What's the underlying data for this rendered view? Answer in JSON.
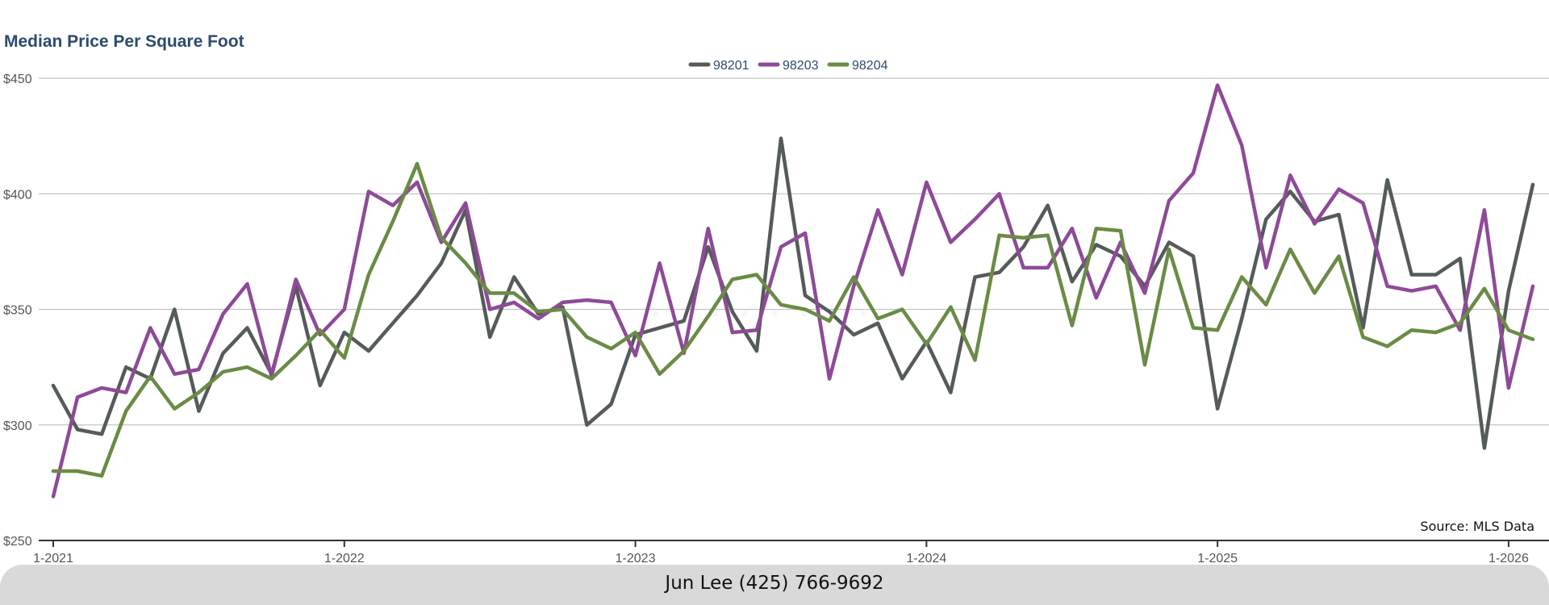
{
  "chart_data": {
    "type": "line",
    "title": "Median Price Per Square Foot",
    "xlabel": "",
    "ylabel": "",
    "ylim": [
      250,
      450
    ],
    "yticks": [
      250,
      300,
      350,
      400,
      450
    ],
    "ytick_labels": [
      "$250",
      "$300",
      "$350",
      "$400",
      "$450"
    ],
    "xlim": [
      "2021-01",
      "2026-02"
    ],
    "xticks": [
      "2021-01",
      "2022-01",
      "2023-01",
      "2024-01",
      "2025-01",
      "2026-01"
    ],
    "xtick_labels": [
      "1-2021",
      "1-2022",
      "1-2023",
      "1-2024",
      "1-2025",
      "1-2026"
    ],
    "grid": true,
    "legend_position": "top-center",
    "source": "Source: MLS Data",
    "series": [
      {
        "name": "98201",
        "color": "#555b5b",
        "x": [
          "2021-01",
          "2021-02",
          "2021-03",
          "2021-04",
          "2021-05",
          "2021-06",
          "2021-07",
          "2021-08",
          "2021-09",
          "2021-10",
          "2021-11",
          "2021-12",
          "2022-01",
          "2022-02",
          "2022-03",
          "2022-04",
          "2022-05",
          "2022-06",
          "2022-07",
          "2022-08",
          "2022-09",
          "2022-10",
          "2022-11",
          "2022-12",
          "2023-01",
          "2023-02",
          "2023-03",
          "2023-04",
          "2023-05",
          "2023-06",
          "2023-07",
          "2023-08",
          "2023-09",
          "2023-10",
          "2023-11",
          "2023-12",
          "2024-01",
          "2024-02",
          "2024-03",
          "2024-04",
          "2024-05",
          "2024-06",
          "2024-07",
          "2024-08",
          "2024-09",
          "2024-10",
          "2024-11",
          "2024-12",
          "2025-01",
          "2025-02",
          "2025-03",
          "2025-04",
          "2025-05",
          "2025-06",
          "2025-07",
          "2025-08",
          "2025-09",
          "2025-10",
          "2025-11",
          "2025-12",
          "2026-01",
          "2026-02"
        ],
        "values": [
          317,
          298,
          296,
          325,
          320,
          350,
          306,
          331,
          342,
          322,
          360,
          317,
          340,
          332,
          344,
          356,
          370,
          393,
          338,
          364,
          348,
          351,
          300,
          309,
          339,
          342,
          345,
          377,
          349,
          332,
          424,
          356,
          349,
          339,
          344,
          320,
          336,
          314,
          364,
          366,
          377,
          395,
          362,
          378,
          373,
          360,
          379,
          373,
          307,
          346,
          389,
          401,
          388,
          391,
          342,
          406,
          365,
          365,
          372,
          290,
          358,
          404
        ]
      },
      {
        "name": "98203",
        "color": "#8e4a98",
        "x": [
          "2021-01",
          "2021-02",
          "2021-03",
          "2021-04",
          "2021-05",
          "2021-06",
          "2021-07",
          "2021-08",
          "2021-09",
          "2021-10",
          "2021-11",
          "2021-12",
          "2022-01",
          "2022-02",
          "2022-03",
          "2022-04",
          "2022-05",
          "2022-06",
          "2022-07",
          "2022-08",
          "2022-09",
          "2022-10",
          "2022-11",
          "2022-12",
          "2023-01",
          "2023-02",
          "2023-03",
          "2023-04",
          "2023-05",
          "2023-06",
          "2023-07",
          "2023-08",
          "2023-09",
          "2023-10",
          "2023-11",
          "2023-12",
          "2024-01",
          "2024-02",
          "2024-03",
          "2024-04",
          "2024-05",
          "2024-06",
          "2024-07",
          "2024-08",
          "2024-09",
          "2024-10",
          "2024-11",
          "2024-12",
          "2025-01",
          "2025-02",
          "2025-03",
          "2025-04",
          "2025-05",
          "2025-06",
          "2025-07",
          "2025-08",
          "2025-09",
          "2025-10",
          "2025-11",
          "2025-12",
          "2026-01",
          "2026-02"
        ],
        "values": [
          269,
          312,
          316,
          314,
          342,
          322,
          324,
          348,
          361,
          321,
          363,
          339,
          350,
          401,
          395,
          405,
          379,
          396,
          350,
          353,
          346,
          353,
          354,
          353,
          330,
          370,
          331,
          385,
          340,
          341,
          377,
          383,
          320,
          360,
          393,
          365,
          405,
          379,
          389,
          400,
          368,
          368,
          385,
          355,
          379,
          357,
          397,
          409,
          447,
          421,
          368,
          408,
          387,
          402,
          396,
          360,
          358,
          360,
          341,
          393,
          316,
          360
        ]
      },
      {
        "name": "98204",
        "color": "#6a8b45",
        "x": [
          "2021-01",
          "2021-02",
          "2021-03",
          "2021-04",
          "2021-05",
          "2021-06",
          "2021-07",
          "2021-08",
          "2021-09",
          "2021-10",
          "2021-11",
          "2021-12",
          "2022-01",
          "2022-02",
          "2022-03",
          "2022-04",
          "2022-05",
          "2022-06",
          "2022-07",
          "2022-08",
          "2022-09",
          "2022-10",
          "2022-11",
          "2022-12",
          "2023-01",
          "2023-02",
          "2023-03",
          "2023-04",
          "2023-05",
          "2023-06",
          "2023-07",
          "2023-08",
          "2023-09",
          "2023-10",
          "2023-11",
          "2023-12",
          "2024-01",
          "2024-02",
          "2024-03",
          "2024-04",
          "2024-05",
          "2024-06",
          "2024-07",
          "2024-08",
          "2024-09",
          "2024-10",
          "2024-11",
          "2024-12",
          "2025-01",
          "2025-02",
          "2025-03",
          "2025-04",
          "2025-05",
          "2025-06",
          "2025-07",
          "2025-08",
          "2025-09",
          "2025-10",
          "2025-11",
          "2025-12",
          "2026-01",
          "2026-02"
        ],
        "values": [
          280,
          280,
          278,
          306,
          321,
          307,
          314,
          323,
          325,
          320,
          330,
          341,
          329,
          365,
          388,
          413,
          381,
          370,
          357,
          357,
          349,
          350,
          338,
          333,
          340,
          322,
          332,
          347,
          363,
          365,
          352,
          350,
          345,
          364,
          346,
          350,
          335,
          351,
          328,
          382,
          381,
          382,
          343,
          385,
          384,
          326,
          376,
          342,
          341,
          364,
          352,
          376,
          357,
          373,
          338,
          334,
          341,
          340,
          344,
          359,
          341,
          337
        ]
      }
    ]
  },
  "footer": {
    "contact": "Jun Lee (425) 766-9692"
  }
}
